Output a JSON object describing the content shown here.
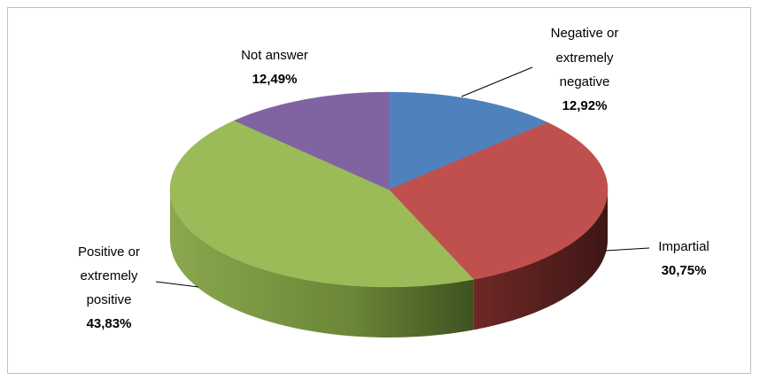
{
  "chart_data": {
    "type": "pie",
    "title": "",
    "style": "3d",
    "slices": [
      {
        "label_lines": [
          "Negative or",
          "extremely",
          "negative"
        ],
        "pct_label": "12,92%",
        "value": 12.92,
        "color": "#4f81bd"
      },
      {
        "label_lines": [
          "Impartial"
        ],
        "pct_label": "30,75%",
        "value": 30.75,
        "color": "#c0504d"
      },
      {
        "label_lines": [
          "Positive or",
          "extremely",
          "positive"
        ],
        "pct_label": "43,83%",
        "value": 43.83,
        "color": "#9bbb59"
      },
      {
        "label_lines": [
          "Not answer"
        ],
        "pct_label": "12,49%",
        "value": 12.49,
        "color": "#8064a2"
      }
    ]
  }
}
